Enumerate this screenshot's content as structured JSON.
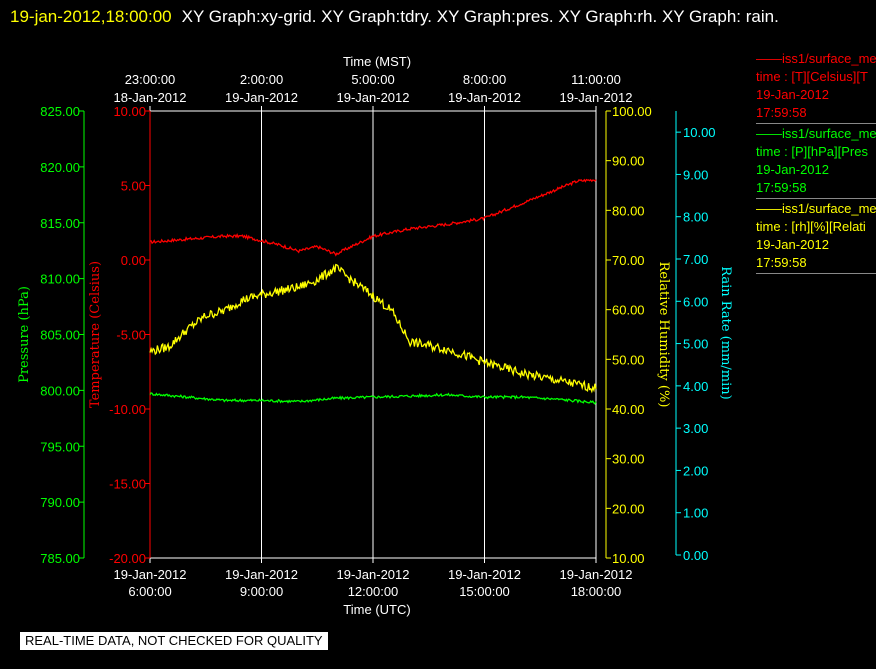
{
  "header": {
    "timestamp": "19-jan-2012,18:00:00",
    "title": "XY Graph:xy-grid.  XY Graph:tdry.  XY Graph:pres.  XY Graph:rh.  XY Graph: rain."
  },
  "legend": [
    {
      "line1": "iss1/surface_me",
      "line2": "time : [T][Celsius][T",
      "line3": "19-Jan-2012",
      "line4": "17:59:58",
      "color": "#ff0000"
    },
    {
      "line1": "iss1/surface_me",
      "line2": "time : [P][hPa][Pres",
      "line3": "19-Jan-2012",
      "line4": "17:59:58",
      "color": "#00ff00"
    },
    {
      "line1": "iss1/surface_me",
      "line2": "time : [rh][%][Relati",
      "line3": "19-Jan-2012",
      "line4": "17:59:58",
      "color": "#ffff00"
    }
  ],
  "banner": "REAL-TIME DATA, NOT CHECKED FOR QUALITY",
  "chart_data": {
    "type": "line",
    "top_axis": {
      "title": "Time (MST)",
      "ticks": [
        {
          "time": "23:00:00",
          "date": "18-Jan-2012"
        },
        {
          "time": "2:00:00",
          "date": "19-Jan-2012"
        },
        {
          "time": "5:00:00",
          "date": "19-Jan-2012"
        },
        {
          "time": "8:00:00",
          "date": "19-Jan-2012"
        },
        {
          "time": "11:00:00",
          "date": "19-Jan-2012"
        }
      ]
    },
    "bottom_axis": {
      "title": "Time (UTC)",
      "ticks": [
        {
          "date": "19-Jan-2012",
          "time": "6:00:00"
        },
        {
          "date": "19-Jan-2012",
          "time": "9:00:00"
        },
        {
          "date": "19-Jan-2012",
          "time": "12:00:00"
        },
        {
          "date": "19-Jan-2012",
          "time": "15:00:00"
        },
        {
          "date": "19-Jan-2012",
          "time": "18:00:00"
        }
      ],
      "xlim_hours_utc": [
        6,
        18
      ]
    },
    "axes": {
      "pressure": {
        "label": "Pressure (hPa)",
        "ylim": [
          785,
          825
        ],
        "ticks": [
          "825.00",
          "820.00",
          "815.00",
          "810.00",
          "805.00",
          "800.00",
          "795.00",
          "790.00",
          "785.00"
        ],
        "color": "#00ff00"
      },
      "temperature": {
        "label": "Temperature (Celsius)",
        "ylim": [
          -20,
          10
        ],
        "ticks": [
          "10.00",
          "5.00",
          "0.00",
          "-5.00",
          "-10.00",
          "-15.00",
          "-20.00"
        ],
        "color": "#ff0000"
      },
      "humidity": {
        "label": "Relative Humidity (%)",
        "ylim": [
          10,
          100
        ],
        "ticks": [
          "100.00",
          "90.00",
          "80.00",
          "70.00",
          "60.00",
          "50.00",
          "40.00",
          "30.00",
          "20.00",
          "10.00"
        ],
        "color": "#ffff00"
      },
      "rain": {
        "label": "Rain Rate (mm/min)",
        "ylim": [
          0,
          10.5
        ],
        "ticks": [
          "10.00",
          "9.00",
          "8.00",
          "7.00",
          "6.00",
          "5.00",
          "4.00",
          "3.00",
          "2.00",
          "1.00",
          "0.00"
        ],
        "color": "#00ffff"
      }
    },
    "grid": true,
    "series": [
      {
        "name": "iss1/surface_me time : [T][Celsius][T",
        "axis": "temperature",
        "color": "#ff0000",
        "x": [
          6.0,
          7.0,
          8.0,
          8.5,
          9.0,
          9.5,
          10.0,
          10.5,
          11.0,
          11.5,
          12.0,
          13.0,
          14.0,
          15.0,
          16.0,
          17.0,
          17.5,
          18.0
        ],
        "y": [
          1.2,
          1.4,
          1.6,
          1.6,
          1.3,
          1.0,
          0.6,
          0.9,
          0.4,
          1.0,
          1.6,
          2.1,
          2.4,
          2.8,
          3.8,
          4.8,
          5.3,
          5.4
        ]
      },
      {
        "name": "iss1/surface_me time : [P][hPa][Pres",
        "axis": "pressure",
        "color": "#00ff00",
        "x": [
          6.0,
          7.0,
          8.0,
          9.0,
          10.0,
          11.0,
          12.0,
          13.0,
          14.0,
          15.0,
          16.0,
          17.0,
          18.0
        ],
        "y": [
          799.7,
          799.4,
          799.1,
          799.1,
          799.0,
          799.3,
          799.4,
          799.5,
          799.6,
          799.4,
          799.4,
          799.2,
          798.9
        ]
      },
      {
        "name": "iss1/surface_me time : [rh][%][Relati",
        "axis": "humidity",
        "color": "#ffff00",
        "x": [
          6.0,
          6.5,
          7.0,
          7.5,
          8.0,
          8.5,
          9.0,
          9.5,
          10.0,
          10.5,
          11.0,
          11.5,
          12.0,
          12.5,
          13.0,
          14.0,
          15.0,
          16.0,
          17.0,
          18.0
        ],
        "y": [
          51.6,
          52.5,
          56.0,
          58.8,
          59.8,
          62.0,
          63.0,
          63.8,
          64.5,
          66.0,
          68.4,
          65.5,
          62.8,
          59.8,
          53.5,
          52.0,
          49.4,
          47.2,
          45.7,
          44.2
        ]
      }
    ]
  }
}
